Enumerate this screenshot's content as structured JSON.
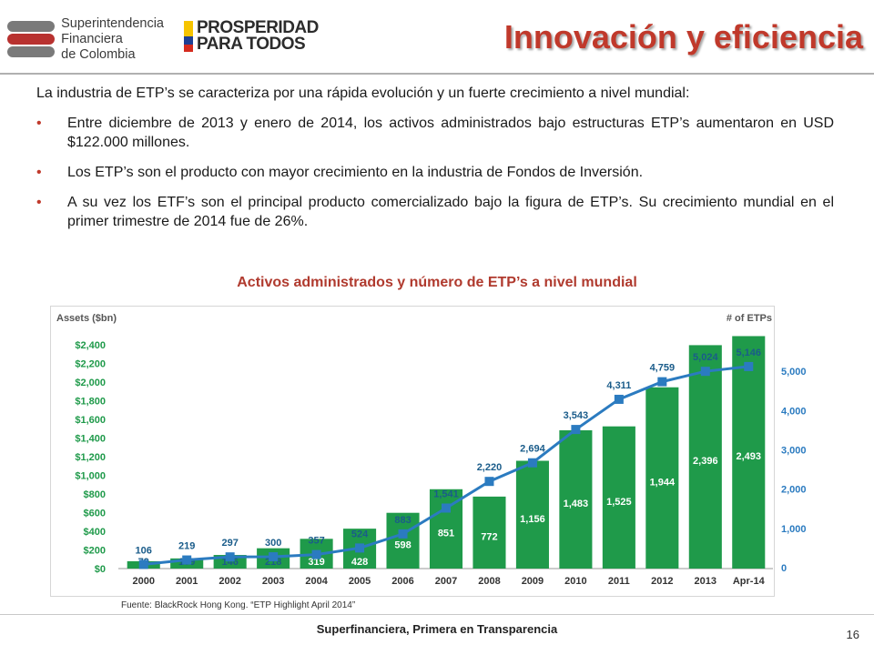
{
  "header": {
    "org_name": "Superintendencia Financiera de Colombia",
    "org_line1": "Superintendencia",
    "org_line2": "Financiera",
    "org_line3": "de Colombia",
    "campaign_line1": "PROSPERIDAD",
    "campaign_line2": "PARA TODOS",
    "title": "Innovación y eficiencia"
  },
  "content": {
    "intro": "La industria de ETP’s se caracteriza por una rápida evolución y un fuerte crecimiento a nivel mundial:",
    "bullets": [
      "Entre diciembre de 2013 y enero de 2014, los activos administrados bajo estructuras ETP’s aumentaron en USD $122.000 millones.",
      "Los ETP’s son el producto con mayor crecimiento en la industria de Fondos de Inversión.",
      "A su vez los ETF’s son el principal producto comercializado bajo la figura de ETP’s. Su crecimiento mundial en el primer trimestre de 2014 fue de 26%."
    ],
    "bullet_symbol": "•"
  },
  "chart_title": "Activos administrados y número de ETP’s a nivel mundial",
  "chart_data": {
    "type": "bar",
    "categories": [
      "2000",
      "2001",
      "2002",
      "2003",
      "2004",
      "2005",
      "2006",
      "2007",
      "2008",
      "2009",
      "2010",
      "2011",
      "2012",
      "2013",
      "Apr-14"
    ],
    "series": [
      {
        "values": [
          79,
          109,
          146,
          218,
          319,
          428,
          598,
          851,
          772,
          1156,
          1483,
          1525,
          1944,
          2396,
          2493
        ],
        "color": "#1f9a4a",
        "axis": "left",
        "kind": "bar"
      },
      {
        "values": [
          106,
          219,
          297,
          300,
          357,
          524,
          883,
          1541,
          2220,
          2694,
          3543,
          4311,
          4759,
          5024,
          5146
        ],
        "color": "#2b7bc0",
        "axis": "right",
        "kind": "line"
      }
    ],
    "bar_labels": [
      "79",
      "109",
      "146",
      "218",
      "319",
      "428",
      "598",
      "851",
      "772",
      "1,156",
      "1,483",
      "1,525",
      "1,944",
      "2,396",
      "2,493"
    ],
    "line_labels": [
      "106",
      "219",
      "297",
      "300",
      "357",
      "524",
      "883",
      "1,541",
      "2,220",
      "2,694",
      "3,543",
      "4,311",
      "4,759",
      "5,024",
      "5,146"
    ],
    "left_axis": {
      "label": "Assets ($bn)",
      "ylim": [
        0,
        2400
      ],
      "ticks": [
        0,
        200,
        400,
        600,
        800,
        1000,
        1200,
        1400,
        1600,
        1800,
        2000,
        2200,
        2400
      ],
      "tick_labels": [
        "$0",
        "$200",
        "$400",
        "$600",
        "$800",
        "$1,000",
        "$1,200",
        "$1,400",
        "$1,600",
        "$1,800",
        "$2,000",
        "$2,200",
        "$2,400"
      ],
      "tick_color": "#1f9a4a"
    },
    "right_axis": {
      "label": "# of ETPs",
      "ylim": [
        0,
        5700
      ],
      "ticks": [
        0,
        1000,
        2000,
        3000,
        4000,
        5000
      ],
      "tick_labels": [
        "0",
        "1,000",
        "2,000",
        "3,000",
        "4,000",
        "5,000"
      ],
      "tick_color": "#2b7bc0"
    },
    "grid": false
  },
  "source": "Fuente: BlackRock Hong Kong. “ETP Highlight April 2014”",
  "footer": {
    "tagline": "Superfinanciera, Primera en Transparencia",
    "page_number": "16"
  },
  "colors": {
    "title_red": "#c0392b",
    "bar_green": "#1f9a4a",
    "line_blue": "#2b7bc0",
    "logo_red": "#b8312f",
    "logo_gray": "#7a7a7a",
    "flag_yellow": "#f6c400",
    "flag_blue": "#1d3f95",
    "flag_red": "#d52b1e"
  }
}
